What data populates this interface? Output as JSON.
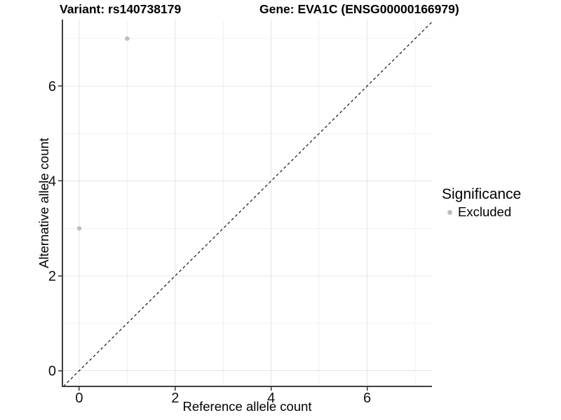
{
  "header": {
    "variant_title": "Variant: rs140738179",
    "gene_title": "Gene: EVA1C (ENSG00000166979)"
  },
  "chart_data": {
    "type": "scatter",
    "title_left": "Variant: rs140738179",
    "title_right": "Gene: EVA1C (ENSG00000166979)",
    "xlabel": "Reference allele count",
    "ylabel": "Alternative allele count",
    "xlim": [
      -0.35,
      7.35
    ],
    "ylim": [
      -0.33,
      7.4
    ],
    "x_major_ticks": [
      0,
      2,
      4,
      6
    ],
    "y_major_ticks": [
      0,
      2,
      4,
      6
    ],
    "x_minor_ticks": [
      1,
      3,
      5,
      7
    ],
    "y_minor_ticks": [
      1,
      3,
      5,
      7
    ],
    "grid": "major+minor",
    "series": [
      {
        "name": "Excluded",
        "color": "#bdbdbd",
        "points": [
          {
            "x": 0,
            "y": 3
          },
          {
            "x": 1,
            "y": 7
          }
        ]
      }
    ],
    "reference_line": {
      "type": "identity y=x",
      "style": "dashed",
      "color": "#000000"
    },
    "legend": {
      "title": "Significance",
      "position": "right",
      "entries": [
        {
          "label": "Excluded",
          "color": "#bdbdbd",
          "marker": "point-icon"
        }
      ]
    }
  },
  "colors": {
    "background": "#ffffff",
    "grid_major": "#e4e4e4",
    "grid_minor": "#f2f2f2",
    "axis_line": "#404040",
    "tick_mark": "#333333",
    "text": "#111111"
  }
}
